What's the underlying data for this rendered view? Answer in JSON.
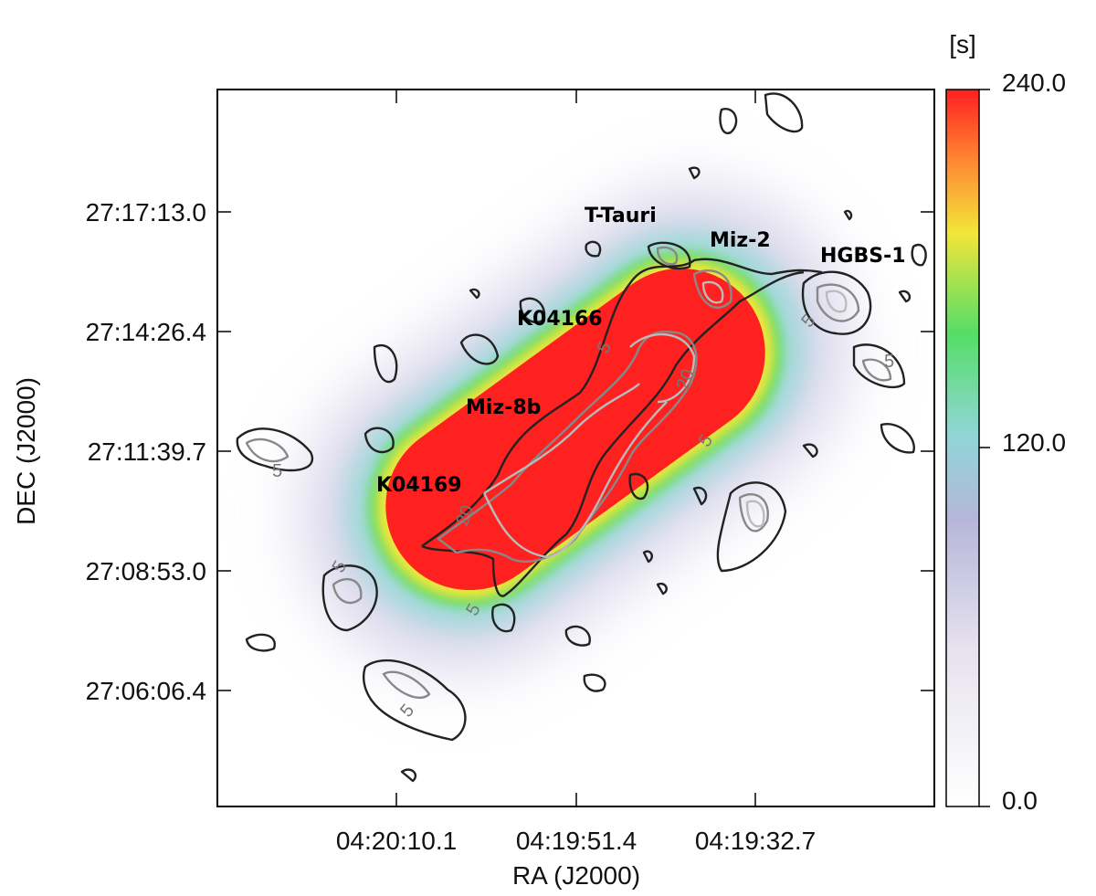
{
  "chart_data": {
    "type": "heatmap",
    "xlabel": "RA (J2000)",
    "ylabel": "DEC (J2000)",
    "x_tick_labels": [
      "04:20:10.1",
      "04:19:51.4",
      "04:19:32.7"
    ],
    "y_tick_labels": [
      "27:17:13.0",
      "27:14:26.4",
      "27:11:39.7",
      "27:08:53.0",
      "27:06:06.4"
    ],
    "colorbar": {
      "unit": "[s]",
      "min": 0.0,
      "max": 240.0,
      "tick_labels": [
        "240.0",
        "120.0",
        "0.0"
      ],
      "colors": [
        "#ffffff",
        "#b6b6da",
        "#8fd6d6",
        "#44dd66",
        "#f2e63a",
        "#ff8833",
        "#ff2020"
      ]
    },
    "contour_levels": [
      5,
      20
    ],
    "contour_level_labels": [
      "5",
      "5",
      "5",
      "5",
      "5",
      "5",
      "5",
      "5",
      "20",
      "20"
    ],
    "sources": [
      "T-Tauri",
      "Miz-2",
      "HGBS-1",
      "K04166",
      "Miz-8b",
      "K04169"
    ]
  }
}
